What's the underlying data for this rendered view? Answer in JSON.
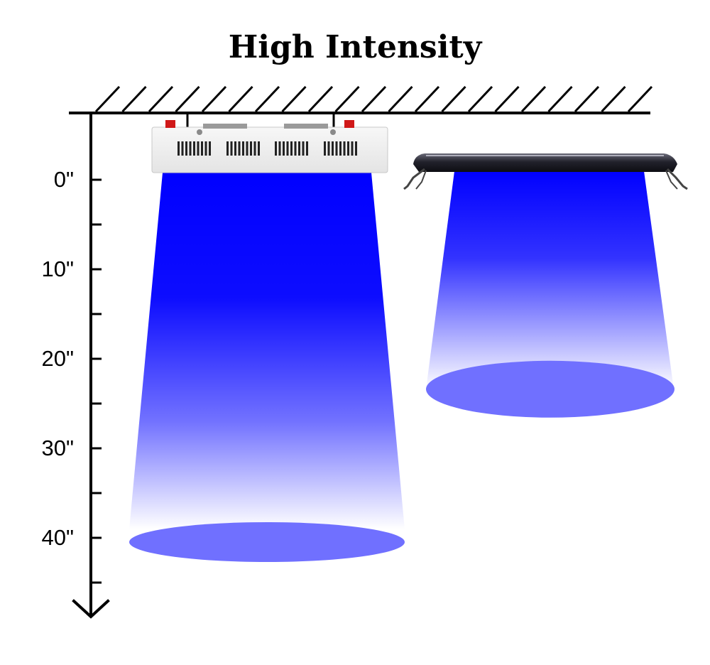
{
  "title": "High Intensity",
  "depth_scale": {
    "unit": "in",
    "labels": [
      "0\"",
      "10\"",
      "20\"",
      "30\"",
      "40\""
    ],
    "major_values": [
      0,
      10,
      20,
      30,
      40
    ],
    "minor_values": [
      5,
      15,
      25,
      35,
      45
    ]
  },
  "fixtures": [
    {
      "type": "led-panel",
      "beam_reach_in": 40
    },
    {
      "type": "led-bar",
      "beam_reach_in": 23
    }
  ],
  "colors": {
    "beam": "#0000ff",
    "spot": "#7070ff",
    "ink": "#000000",
    "panel_body": "#f2f2f2",
    "bar_body": "#1b1b25",
    "switch_red": "#d01818"
  }
}
